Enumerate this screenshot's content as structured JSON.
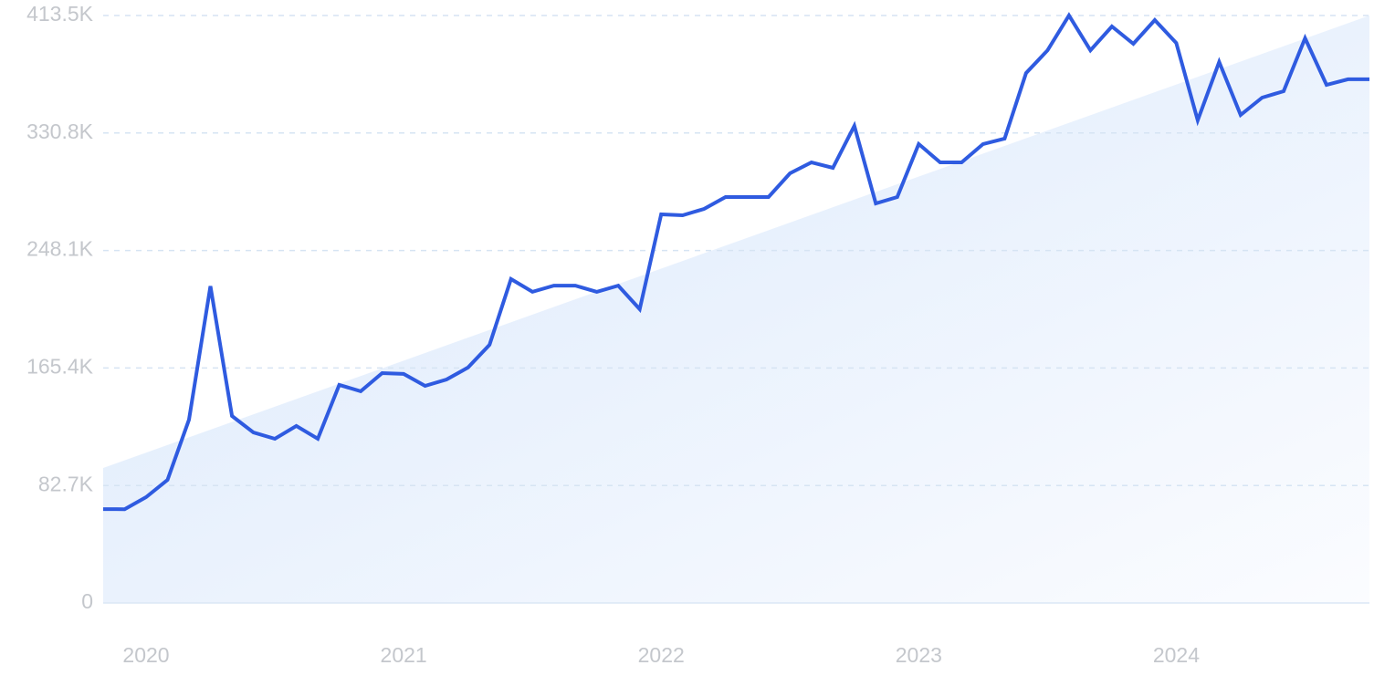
{
  "chart_data": {
    "type": "line",
    "categories": [
      null,
      null,
      "2020",
      null,
      null,
      null,
      null,
      null,
      null,
      null,
      null,
      null,
      null,
      null,
      "2021",
      null,
      null,
      null,
      null,
      null,
      null,
      null,
      null,
      null,
      null,
      null,
      "2022",
      null,
      null,
      null,
      null,
      null,
      null,
      null,
      null,
      null,
      null,
      null,
      "2023",
      null,
      null,
      null,
      null,
      null,
      null,
      null,
      null,
      null,
      null,
      null,
      "2024",
      null,
      null,
      null,
      null,
      null,
      null,
      null,
      null,
      null
    ],
    "values": [
      66100,
      66000,
      74500,
      86700,
      129000,
      223000,
      131600,
      120000,
      115600,
      124600,
      115600,
      153500,
      149000,
      161800,
      161200,
      152800,
      157300,
      165700,
      181700,
      228000,
      219000,
      223400,
      223400,
      219000,
      223400,
      206800,
      273500,
      272900,
      277400,
      285700,
      285700,
      285700,
      302400,
      310100,
      306300,
      335800,
      281200,
      285700,
      323000,
      310100,
      310100,
      323000,
      326800,
      373000,
      389000,
      413500,
      389000,
      405800,
      393600,
      410300,
      394200,
      339700,
      380800,
      343500,
      355700,
      360200,
      397500,
      364700,
      368600,
      368600
    ],
    "color": "#2f5be0",
    "trend": [
      95000,
      413500
    ],
    "ylim": [
      0,
      413500
    ],
    "yticks": [
      0,
      {
        "value": 82700,
        "label": "82.7K"
      },
      {
        "value": 165400,
        "label": "165.4K"
      },
      {
        "value": 248100,
        "label": "248.1K"
      },
      {
        "value": 330800,
        "label": "330.8K"
      },
      {
        "value": 413500,
        "label": "413.5K"
      }
    ],
    "grid": true
  }
}
